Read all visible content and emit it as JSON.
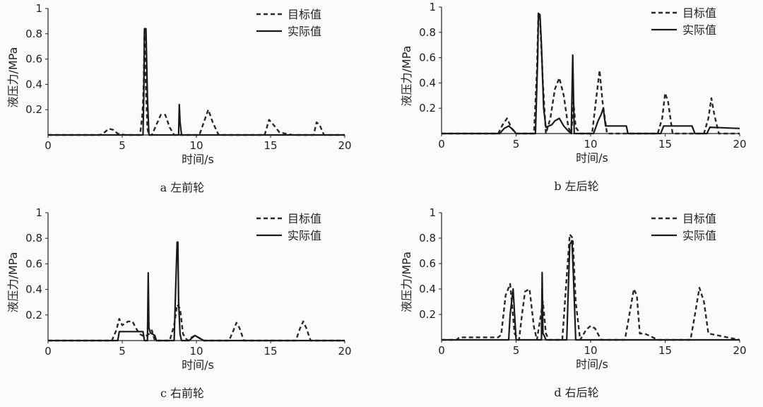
{
  "legend": {
    "target": "目标值",
    "actual": "实际值"
  },
  "chart_data": [
    {
      "type": "line",
      "caption": "a 左前轮",
      "xlabel": "时间/s",
      "ylabel": "液压力/MPa",
      "xlim": [
        0,
        20
      ],
      "ylim": [
        0,
        1.0
      ],
      "xticks": [
        0,
        5,
        10,
        15,
        20
      ],
      "yticks": [
        0.2,
        0.4,
        0.6,
        0.8,
        1.0
      ],
      "series": [
        {
          "name": "目标值",
          "x": [
            0,
            3.5,
            3.8,
            4.1,
            4.4,
            4.7,
            5.2,
            6.2,
            6.35,
            6.4,
            6.45,
            6.5,
            6.6,
            6.7,
            6.8,
            7.0,
            7.3,
            7.6,
            7.9,
            8.2,
            8.5,
            8.8,
            9.5,
            10.2,
            10.5,
            10.8,
            11.1,
            11.5,
            12.5,
            14.6,
            14.9,
            15.2,
            15.6,
            16.5,
            17.9,
            18.1,
            18.3,
            18.6,
            20
          ],
          "y": [
            0,
            0,
            0.02,
            0.05,
            0.04,
            0.01,
            0,
            0,
            0.15,
            0.25,
            0.42,
            0.82,
            0.35,
            0.05,
            0,
            0,
            0.08,
            0.16,
            0.16,
            0.06,
            0,
            0,
            0,
            0,
            0.1,
            0.2,
            0.1,
            0,
            0,
            0,
            0.12,
            0.08,
            0.02,
            0,
            0,
            0.1,
            0.08,
            0,
            0
          ]
        },
        {
          "name": "实际值",
          "x": [
            0,
            6.4,
            6.45,
            6.5,
            6.6,
            6.7,
            6.8,
            8.8,
            8.85,
            8.9,
            9.0,
            20
          ],
          "y": [
            0,
            0,
            0.3,
            0.84,
            0.84,
            0.3,
            0,
            0,
            0.24,
            0.1,
            0,
            0
          ]
        }
      ]
    },
    {
      "type": "line",
      "caption": "b 左后轮",
      "xlabel": "时间/s",
      "ylabel": "液压力/MPa",
      "xlim": [
        0,
        20
      ],
      "ylim": [
        0,
        1.0
      ],
      "xticks": [
        0,
        5,
        10,
        15,
        20
      ],
      "yticks": [
        0.2,
        0.4,
        0.6,
        0.8,
        1.0
      ],
      "series": [
        {
          "name": "目标值",
          "x": [
            0,
            3.8,
            4.1,
            4.4,
            4.7,
            5.0,
            6.2,
            6.4,
            6.5,
            6.6,
            6.8,
            7.0,
            7.3,
            7.6,
            7.9,
            8.2,
            8.5,
            8.7,
            8.85,
            9.0,
            9.3,
            10.1,
            10.4,
            10.6,
            10.8,
            11.1,
            14.5,
            14.8,
            15.0,
            15.2,
            15.5,
            17.6,
            17.9,
            18.1,
            18.3,
            18.6,
            20
          ],
          "y": [
            0,
            0,
            0.07,
            0.12,
            0.04,
            0,
            0,
            0.5,
            0.95,
            0.92,
            0.4,
            0,
            0.12,
            0.35,
            0.44,
            0.3,
            0.05,
            0,
            0.25,
            0.05,
            0,
            0,
            0.3,
            0.5,
            0.25,
            0,
            0,
            0.12,
            0.32,
            0.25,
            0,
            0,
            0.12,
            0.28,
            0.15,
            0,
            0
          ]
        },
        {
          "name": "实际值",
          "x": [
            0,
            3.9,
            4.2,
            4.5,
            4.8,
            5.0,
            6.3,
            6.45,
            6.5,
            6.6,
            6.7,
            6.85,
            7.0,
            7.4,
            7.6,
            7.9,
            8.2,
            8.5,
            8.7,
            8.75,
            8.8,
            8.9,
            9.5,
            10.2,
            10.5,
            10.7,
            10.85,
            11.0,
            12.4,
            12.5,
            14.7,
            14.9,
            16.8,
            17.0,
            17.8,
            18.0,
            20
          ],
          "y": [
            0,
            0,
            0.04,
            0.06,
            0.03,
            0,
            0,
            0.6,
            0.95,
            0.94,
            0.7,
            0.2,
            0.05,
            0.07,
            0.1,
            0.12,
            0.06,
            0.02,
            0,
            0.3,
            0.62,
            0,
            0,
            0,
            0.1,
            0.15,
            0.2,
            0.06,
            0.06,
            0,
            0,
            0.06,
            0.06,
            0,
            0,
            0.05,
            0.04
          ]
        }
      ]
    },
    {
      "type": "line",
      "caption": "c 右前轮",
      "xlabel": "时间/s",
      "ylabel": "液压力/MPa",
      "xlim": [
        0,
        20
      ],
      "ylim": [
        0,
        1.0
      ],
      "xticks": [
        0,
        5,
        10,
        15,
        20
      ],
      "yticks": [
        0.2,
        0.4,
        0.6,
        0.8,
        1.0
      ],
      "series": [
        {
          "name": "目标值",
          "x": [
            0,
            4.3,
            4.6,
            4.8,
            5.0,
            5.4,
            5.7,
            5.9,
            6.2,
            6.5,
            6.8,
            7.0,
            7.2,
            8.2,
            8.5,
            8.7,
            8.9,
            9.1,
            9.4,
            9.6,
            9.9,
            10.2,
            10.5,
            12.2,
            12.5,
            12.7,
            12.9,
            13.2,
            16.7,
            17.0,
            17.2,
            17.4,
            17.7,
            20
          ],
          "y": [
            0,
            0,
            0.08,
            0.17,
            0.12,
            0.15,
            0.15,
            0.1,
            0.05,
            0.03,
            0.05,
            0.08,
            0,
            0,
            0.12,
            0.28,
            0.25,
            0.05,
            0,
            0.02,
            0.04,
            0.02,
            0,
            0,
            0.08,
            0.14,
            0.1,
            0,
            0,
            0.1,
            0.15,
            0.1,
            0,
            0
          ]
        },
        {
          "name": "实际值",
          "x": [
            0,
            4.7,
            4.8,
            6.4,
            6.5,
            6.7,
            6.75,
            6.8,
            6.9,
            7.2,
            7.3,
            8.5,
            8.6,
            8.7,
            8.75,
            8.8,
            8.9,
            9.0,
            9.5,
            9.7,
            9.9,
            10.2,
            10.5,
            20
          ],
          "y": [
            0,
            0,
            0.07,
            0.07,
            0,
            0,
            0.53,
            0.1,
            0.06,
            0.04,
            0,
            0,
            0.4,
            0.77,
            0.77,
            0.3,
            0.05,
            0,
            0,
            0.02,
            0.04,
            0.02,
            0,
            0
          ]
        }
      ]
    },
    {
      "type": "line",
      "caption": "d 右后轮",
      "xlabel": "时间/s",
      "ylabel": "液压力/MPa",
      "xlim": [
        0,
        20
      ],
      "ylim": [
        0,
        1.0
      ],
      "xticks": [
        0,
        5,
        10,
        15,
        20
      ],
      "yticks": [
        0.2,
        0.4,
        0.6,
        0.8,
        1.0
      ],
      "series": [
        {
          "name": "目标值",
          "x": [
            0,
            1.0,
            1.2,
            3.8,
            4.0,
            4.3,
            4.6,
            4.9,
            5.2,
            5.4,
            5.6,
            5.9,
            6.2,
            6.4,
            6.8,
            7.0,
            7.2,
            8.1,
            8.4,
            8.6,
            8.8,
            9.0,
            9.3,
            9.7,
            10.0,
            10.3,
            10.7,
            12.3,
            12.6,
            12.9,
            13.1,
            13.3,
            13.6,
            14.0,
            14.5,
            16.7,
            17.0,
            17.3,
            17.6,
            17.9,
            20
          ],
          "y": [
            0,
            0,
            0.02,
            0.02,
            0.04,
            0.35,
            0.44,
            0.05,
            0,
            0.2,
            0.38,
            0.4,
            0.1,
            0,
            0.3,
            0.05,
            0,
            0,
            0.5,
            0.83,
            0.8,
            0.3,
            0,
            0.08,
            0.11,
            0.09,
            0,
            0,
            0.2,
            0.4,
            0.35,
            0.05,
            0.05,
            0.03,
            0,
            0,
            0.2,
            0.41,
            0.3,
            0.05,
            0
          ]
        },
        {
          "name": "实际值",
          "x": [
            0,
            4.5,
            4.6,
            4.8,
            5.0,
            6.7,
            6.75,
            6.8,
            6.9,
            7.0,
            8.4,
            8.5,
            8.6,
            8.75,
            8.85,
            9.0,
            20
          ],
          "y": [
            0,
            0,
            0.2,
            0.4,
            0,
            0,
            0.53,
            0.05,
            0.03,
            0,
            0,
            0.4,
            0.75,
            0.78,
            0.5,
            0,
            0
          ]
        }
      ]
    }
  ]
}
